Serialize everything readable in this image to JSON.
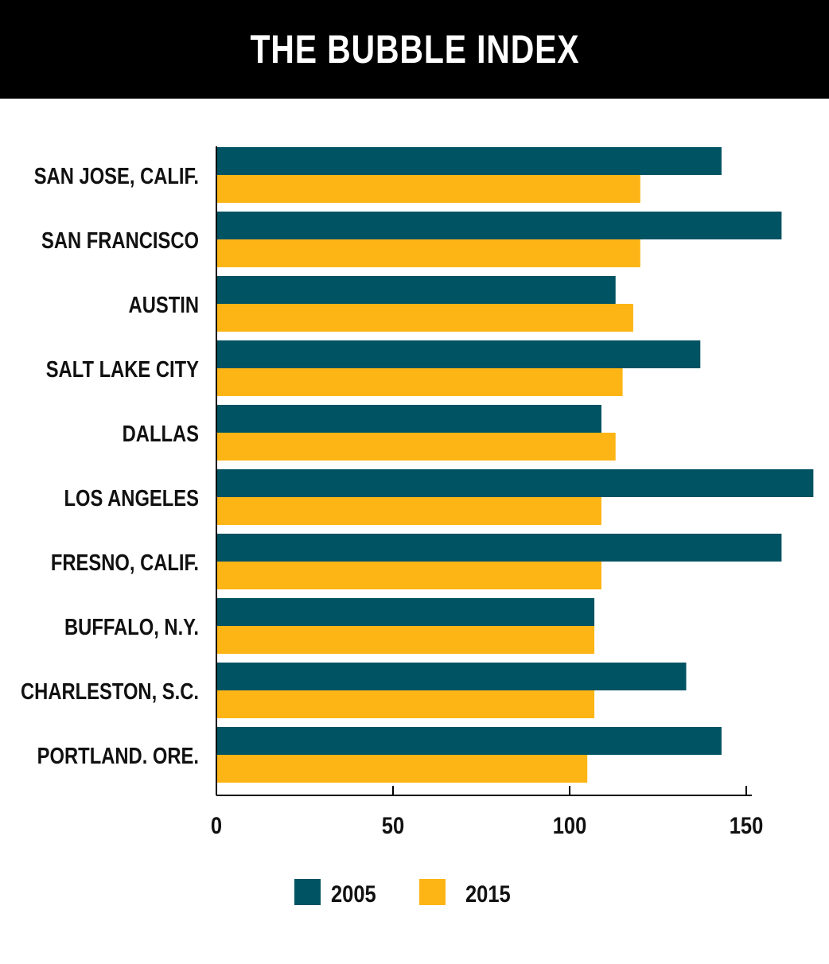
{
  "title": "THE BUBBLE INDEX",
  "chart_data": {
    "type": "bar",
    "orientation": "horizontal",
    "categories": [
      "SAN JOSE, CALIF.",
      "SAN FRANCISCO",
      "AUSTIN",
      "SALT LAKE CITY",
      "DALLAS",
      "LOS ANGELES",
      "FRESNO, CALIF.",
      "BUFFALO, N.Y.",
      "CHARLESTON, S.C.",
      "PORTLAND. ORE."
    ],
    "series": [
      {
        "name": "2005",
        "color": "#005362",
        "values": [
          143,
          160,
          113,
          137,
          109,
          169,
          160,
          107,
          133,
          143
        ]
      },
      {
        "name": "2015",
        "color": "#FDB515",
        "values": [
          120,
          120,
          118,
          115,
          113,
          109,
          109,
          107,
          107,
          105
        ]
      }
    ],
    "xlim": [
      0,
      150
    ],
    "xticks": [
      0,
      50,
      100,
      150
    ],
    "xlabel": "",
    "ylabel": "",
    "grid": false,
    "legend_position": "bottom-center"
  }
}
